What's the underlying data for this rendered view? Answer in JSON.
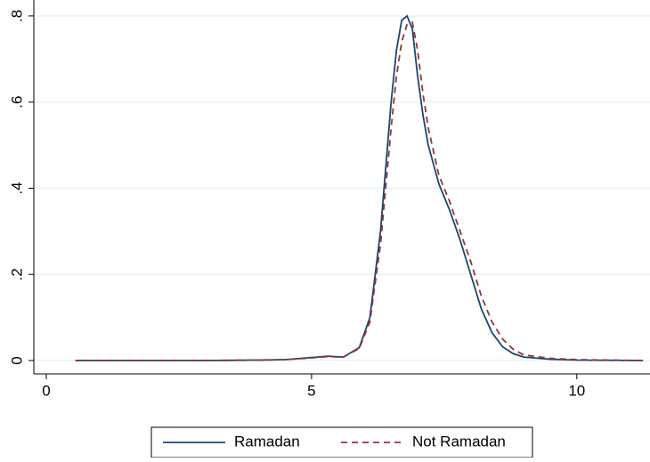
{
  "chart_data": {
    "type": "line",
    "x": [
      0.55,
      2,
      3,
      4,
      4.5,
      5,
      5.3,
      5.6,
      5.9,
      6.1,
      6.3,
      6.5,
      6.6,
      6.7,
      6.8,
      6.9,
      7.0,
      7.1,
      7.2,
      7.4,
      7.6,
      7.8,
      8.0,
      8.2,
      8.4,
      8.6,
      8.8,
      9.0,
      9.5,
      10,
      11.25
    ],
    "series": [
      {
        "name": "Ramadan",
        "color": "#1a476f",
        "line_style": "solid",
        "values": [
          0,
          0,
          0,
          0.001,
          0.002,
          0.007,
          0.01,
          0.008,
          0.03,
          0.1,
          0.3,
          0.6,
          0.72,
          0.79,
          0.8,
          0.77,
          0.66,
          0.57,
          0.5,
          0.41,
          0.35,
          0.28,
          0.2,
          0.12,
          0.065,
          0.032,
          0.016,
          0.008,
          0.003,
          0.001,
          0
        ]
      },
      {
        "name": "Not Ramadan",
        "color": "#90353b",
        "line_style": "dashed",
        "values": [
          0,
          0,
          0,
          0.001,
          0.002,
          0.006,
          0.009,
          0.008,
          0.028,
          0.09,
          0.27,
          0.54,
          0.66,
          0.74,
          0.78,
          0.785,
          0.72,
          0.62,
          0.54,
          0.43,
          0.37,
          0.3,
          0.23,
          0.15,
          0.09,
          0.05,
          0.026,
          0.013,
          0.005,
          0.002,
          0
        ]
      }
    ],
    "xlim": [
      -0.235,
      11.38
    ],
    "xticks": [
      0,
      5,
      10
    ],
    "ylim": [
      -0.031,
      0.837
    ],
    "yticks": [
      0,
      {
        "value": 0.2,
        "label": ".2"
      },
      {
        "value": 0.4,
        "label": ".4"
      },
      {
        "value": 0.6,
        "label": ".6"
      },
      {
        "value": 0.8,
        "label": ".8"
      }
    ],
    "grid": true,
    "legend": "bottom"
  }
}
